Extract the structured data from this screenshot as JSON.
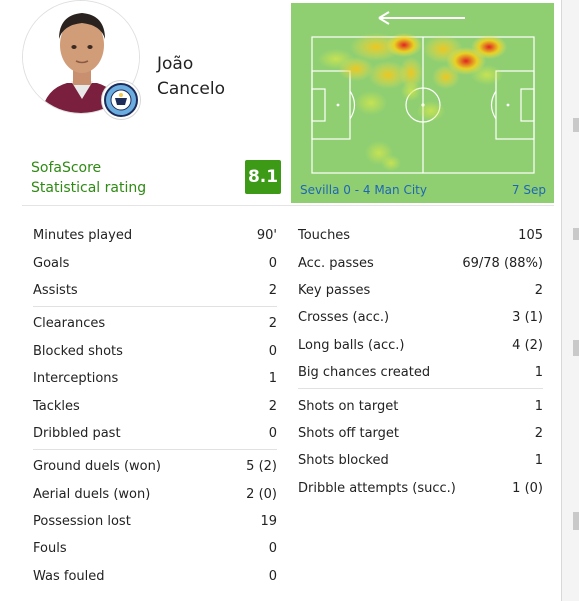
{
  "player": {
    "first_name": "João",
    "last_name": "Cancelo",
    "club_badge_icon": "manchester-city-crest"
  },
  "rating": {
    "label_line1": "SofaScore",
    "label_line2": "Statistical rating",
    "value": "8.1",
    "color": "#3c9a17"
  },
  "heatmap": {
    "direction_icon": "arrow-left-icon",
    "match": "Sevilla 0 - 4 Man City",
    "date": "7 Sep",
    "pitch_color": "#8fcf72"
  },
  "stats_left": [
    [
      {
        "label": "Minutes played",
        "value": "90'"
      },
      {
        "label": "Goals",
        "value": "0"
      },
      {
        "label": "Assists",
        "value": "2"
      }
    ],
    [
      {
        "label": "Clearances",
        "value": "2"
      },
      {
        "label": "Blocked shots",
        "value": "0"
      },
      {
        "label": "Interceptions",
        "value": "1"
      },
      {
        "label": "Tackles",
        "value": "2"
      },
      {
        "label": "Dribbled past",
        "value": "0"
      }
    ],
    [
      {
        "label": "Ground duels (won)",
        "value": "5 (2)"
      },
      {
        "label": "Aerial duels (won)",
        "value": "2 (0)"
      },
      {
        "label": "Possession lost",
        "value": "19"
      },
      {
        "label": "Fouls",
        "value": "0"
      },
      {
        "label": "Was fouled",
        "value": "0"
      }
    ]
  ],
  "stats_right": [
    [
      {
        "label": "Touches",
        "value": "105"
      },
      {
        "label": "Acc. passes",
        "value": "69/78 (88%)"
      },
      {
        "label": "Key passes",
        "value": "2"
      },
      {
        "label": "Crosses (acc.)",
        "value": "3 (1)"
      },
      {
        "label": "Long balls (acc.)",
        "value": "4 (2)"
      },
      {
        "label": "Big chances created",
        "value": "1"
      }
    ],
    [
      {
        "label": "Shots on target",
        "value": "1"
      },
      {
        "label": "Shots off target",
        "value": "2"
      },
      {
        "label": "Shots blocked",
        "value": "1"
      },
      {
        "label": "Dribble attempts (succ.)",
        "value": "1 (0)"
      }
    ]
  ]
}
